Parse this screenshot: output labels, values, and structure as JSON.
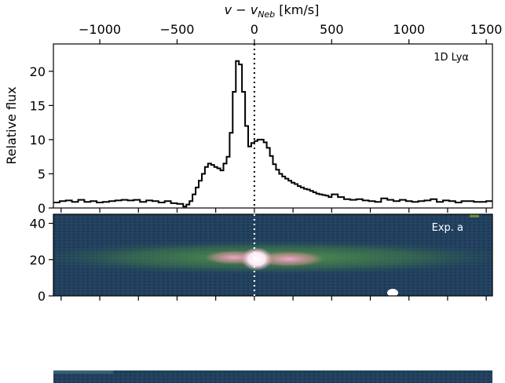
{
  "chart_data": [
    {
      "type": "line",
      "title": "",
      "xlabel": "v − v_Neb [km/s]",
      "xlabel_main": "v − v",
      "xlabel_sub": "Neb",
      "xlabel_unit": " [km/s]",
      "ylabel": "Relative flux",
      "annotation": "1D Lyα",
      "xlim": [
        -1300,
        1540
      ],
      "ylim": [
        0,
        24
      ],
      "x_ticks": [
        -1000,
        -500,
        0,
        500,
        1000,
        1500
      ],
      "x_tick_labels": [
        "−1000",
        "−500",
        "0",
        "500",
        "1000",
        "1500"
      ],
      "y_ticks": [
        0,
        5,
        10,
        15,
        20
      ],
      "y_tick_labels": [
        "0",
        "5",
        "10",
        "15",
        "20"
      ],
      "reference_line_x": 0,
      "series": [
        {
          "style": "steps",
          "x": [
            -1300,
            -1260,
            -1220,
            -1180,
            -1140,
            -1100,
            -1060,
            -1020,
            -980,
            -940,
            -900,
            -860,
            -820,
            -780,
            -740,
            -700,
            -660,
            -620,
            -580,
            -540,
            -500,
            -460,
            -440,
            -420,
            -400,
            -380,
            -360,
            -340,
            -320,
            -300,
            -280,
            -260,
            -240,
            -220,
            -200,
            -180,
            -160,
            -140,
            -120,
            -100,
            -80,
            -60,
            -40,
            -20,
            0,
            20,
            40,
            60,
            80,
            100,
            120,
            140,
            160,
            180,
            200,
            220,
            240,
            260,
            280,
            300,
            320,
            340,
            360,
            380,
            400,
            420,
            440,
            460,
            480,
            500,
            540,
            580,
            620,
            660,
            700,
            740,
            780,
            820,
            860,
            900,
            940,
            980,
            1020,
            1060,
            1100,
            1140,
            1180,
            1220,
            1260,
            1300,
            1340,
            1380,
            1420,
            1460,
            1500,
            1540
          ],
          "y": [
            0.8,
            1.0,
            1.1,
            0.9,
            1.2,
            0.9,
            1.0,
            0.8,
            0.9,
            1.0,
            1.1,
            1.2,
            1.1,
            1.2,
            0.9,
            1.1,
            1.0,
            0.8,
            1.0,
            0.7,
            0.6,
            0.2,
            0.5,
            1.0,
            2.0,
            3.0,
            4.0,
            5.0,
            6.0,
            6.5,
            6.3,
            6.0,
            5.8,
            5.5,
            6.5,
            7.5,
            11.0,
            17.0,
            21.5,
            21.0,
            17.0,
            12.0,
            9.0,
            9.5,
            9.8,
            10.0,
            10.0,
            9.6,
            8.8,
            7.6,
            6.4,
            5.6,
            5.0,
            4.6,
            4.3,
            4.0,
            3.7,
            3.5,
            3.2,
            3.0,
            2.8,
            2.7,
            2.5,
            2.3,
            2.1,
            2.0,
            1.9,
            1.8,
            1.6,
            2.0,
            1.6,
            1.3,
            1.2,
            1.3,
            1.1,
            1.0,
            0.9,
            1.4,
            1.2,
            1.0,
            1.2,
            1.0,
            0.9,
            1.0,
            1.1,
            1.3,
            0.9,
            1.1,
            1.0,
            0.8,
            1.0,
            1.0,
            0.9,
            0.9,
            1.0,
            1.0
          ]
        }
      ]
    },
    {
      "type": "heatmap",
      "title": "",
      "annotation": "Exp. a",
      "xlim": [
        -1300,
        1540
      ],
      "ylim": [
        0,
        45
      ],
      "y_ticks": [
        0,
        20,
        40
      ],
      "y_tick_labels": [
        "0",
        "20",
        "40"
      ],
      "emission_center_y": 20,
      "features": [
        {
          "x": 0,
          "y": 20,
          "intensity": 1.0
        },
        {
          "x": -150,
          "y": 20,
          "intensity": 0.55
        },
        {
          "x": 200,
          "y": 20,
          "intensity": 0.6
        },
        {
          "x": 900,
          "y": 2,
          "intensity": 0.95
        }
      ]
    }
  ],
  "colors": {
    "line": "#000000",
    "background_dark": "#1d3a5c",
    "background_mid": "#2d5a6b",
    "green": "#4f8a4a",
    "pink": "#e9a0c3",
    "white": "#ffffff",
    "annotation_light": "#ffffff"
  }
}
